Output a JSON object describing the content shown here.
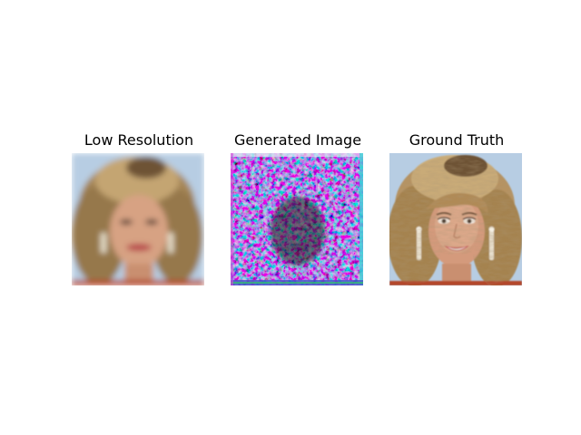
{
  "panels": [
    {
      "title": "Low Resolution"
    },
    {
      "title": "Generated Image"
    },
    {
      "title": "Ground Truth"
    }
  ],
  "colors": {
    "background": "#ffffff",
    "sky_blue": "#b7cde3",
    "hair_blonde": "#b69362",
    "hair_dark": "#6e5234",
    "skin": "#d49a7c",
    "lips": "#c2454d",
    "shirt": "#b4472b",
    "noise_magenta": "#d34fd8",
    "noise_cyan": "#3fd3d8",
    "noise_blue": "#4454c8",
    "noise_dark": "#262a1c"
  }
}
